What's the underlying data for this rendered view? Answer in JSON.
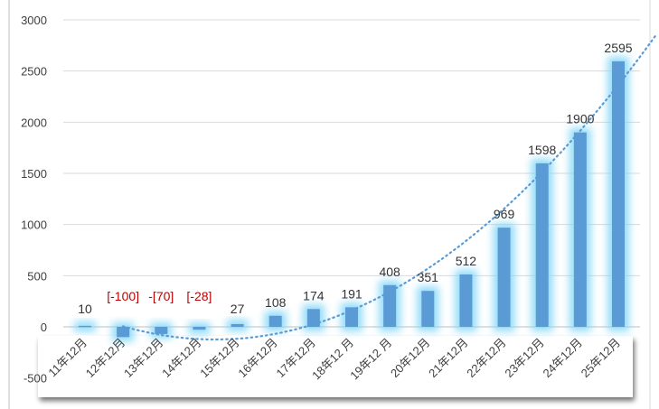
{
  "chart_data": {
    "type": "bar",
    "categories": [
      "11年12月",
      "12年12月",
      "13年12月",
      "14年12月",
      "15年12月",
      "16年12月",
      "17年12月",
      "18年12 月",
      "19年12 月",
      "20年12月",
      "21年12月",
      "22年12月",
      "23年12月",
      "24年12月",
      "25年12月"
    ],
    "values": [
      10,
      -100,
      -70,
      -28,
      27,
      108,
      174,
      191,
      408,
      351,
      512,
      969,
      1598,
      1900,
      2595
    ],
    "data_labels": [
      "10",
      "[-100]",
      "-[70]",
      "[-28]",
      "27",
      "108",
      "174",
      "191",
      "408",
      "351",
      "512",
      "969",
      "1598",
      "1900",
      "2595"
    ],
    "yticks": [
      "-500",
      "0",
      "500",
      "1000",
      "1500",
      "2000",
      "2500",
      "3000"
    ],
    "ylim": [
      -500,
      3000
    ],
    "title": "",
    "xlabel": "",
    "ylabel": "",
    "grid": true,
    "legend": "none",
    "trendline": {
      "type": "polynomial",
      "style": "dotted"
    },
    "colors": {
      "bar": "#5b9bd5",
      "glow": "#7fd6f7",
      "trend": "#5b9bd5",
      "negative_label": "#c00000",
      "label": "#333333",
      "grid": "#d9d9d9"
    }
  }
}
